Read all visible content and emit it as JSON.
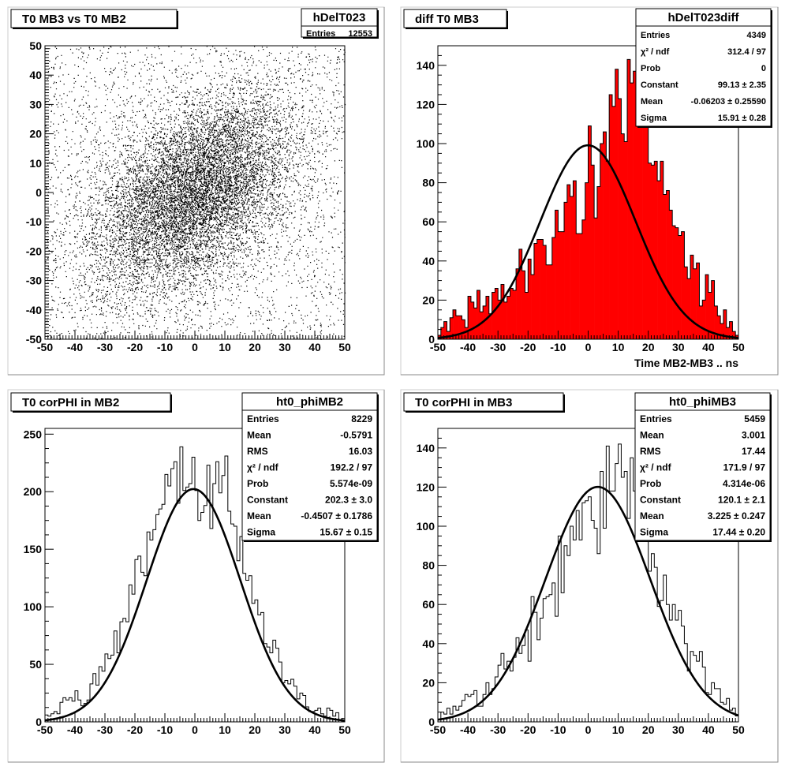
{
  "chart_data": [
    {
      "type": "scatter",
      "title": "T0 MB3 vs T0 MB2",
      "xlim": [
        -50,
        50
      ],
      "ylim": [
        -50,
        50
      ],
      "x_ticks": [
        -50,
        -40,
        -30,
        -20,
        -10,
        0,
        10,
        20,
        30,
        40,
        50
      ],
      "y_ticks": [
        -50,
        -40,
        -30,
        -20,
        -10,
        0,
        10,
        20,
        30,
        40,
        50
      ],
      "stats": {
        "name": "hDelT023",
        "rows": [
          {
            "label": "Entries",
            "value": "12553"
          }
        ]
      },
      "scatter": {
        "entries": 12553,
        "mean_x": 0,
        "mean_y": 0,
        "sigma_x": 17,
        "sigma_y": 17,
        "correlation": 0.45,
        "marker_color": "#000000"
      }
    },
    {
      "type": "bar",
      "title": "diff T0 MB3",
      "xlabel": "Time MB2-MB3  ..  ns",
      "xlim": [
        -50,
        50
      ],
      "ylim": [
        0,
        150
      ],
      "x_ticks": [
        -50,
        -40,
        -30,
        -20,
        -10,
        0,
        10,
        20,
        30,
        40,
        50
      ],
      "y_ticks": [
        0,
        20,
        40,
        60,
        80,
        100,
        120,
        140
      ],
      "fill_color": "#ff0000",
      "bins": 100,
      "stats": {
        "name": "hDelT023diff",
        "rows": [
          {
            "label": "Entries",
            "value": "4349"
          },
          {
            "label": "χ² / ndf",
            "value": "312.4 / 97"
          },
          {
            "label": "Prob",
            "value": "0"
          },
          {
            "label": "Constant",
            "value": "99.13 ± 2.35"
          },
          {
            "label": "Mean",
            "value": "-0.06203 ± 0.25590"
          },
          {
            "label": "Sigma",
            "value": "15.91 ± 0.28"
          }
        ]
      },
      "fit": {
        "type": "gaussian",
        "constant": 99.13,
        "mean": -0.06203,
        "sigma": 15.91
      },
      "values": [
        2,
        6,
        9,
        4,
        11,
        15,
        12,
        12,
        10,
        6,
        22,
        19,
        16,
        25,
        14,
        17,
        22,
        13,
        24,
        26,
        20,
        28,
        19,
        22,
        26,
        25,
        36,
        46,
        35,
        24,
        41,
        33,
        49,
        51,
        51,
        48,
        38,
        38,
        52,
        66,
        55,
        55,
        70,
        79,
        73,
        81,
        54,
        54,
        61,
        80,
        109,
        89,
        62,
        78,
        100,
        106,
        91,
        125,
        119,
        138,
        123,
        105,
        101,
        143,
        131,
        137,
        145,
        121,
        114,
        119,
        90,
        89,
        91,
        81,
        91,
        74,
        76,
        66,
        58,
        57,
        53,
        55,
        37,
        31,
        43,
        36,
        39,
        17,
        20,
        33,
        24,
        30,
        17,
        12,
        8,
        15,
        6,
        9,
        4,
        2
      ]
    },
    {
      "type": "bar",
      "title": "T0 corPHI in MB2",
      "xlim": [
        -50,
        50
      ],
      "ylim": [
        0,
        255
      ],
      "x_ticks": [
        -50,
        -40,
        -30,
        -20,
        -10,
        0,
        10,
        20,
        30,
        40,
        50
      ],
      "y_ticks": [
        0,
        50,
        100,
        150,
        200,
        250
      ],
      "bins": 100,
      "stats": {
        "name": "ht0_phiMB2",
        "rows": [
          {
            "label": "Entries",
            "value": "8229"
          },
          {
            "label": "Mean",
            "value": "-0.5791"
          },
          {
            "label": "RMS",
            "value": "16.03"
          },
          {
            "label": "χ² / ndf",
            "value": "192.2 / 97"
          },
          {
            "label": "Prob",
            "value": "5.574e-09"
          },
          {
            "label": "Constant",
            "value": "202.3 ± 3.0"
          },
          {
            "label": "Mean",
            "value": "-0.4507 ± 0.1786"
          },
          {
            "label": "Sigma",
            "value": "15.67 ± 0.15"
          }
        ]
      },
      "fit": {
        "type": "gaussian",
        "constant": 202.3,
        "mean": -0.4507,
        "sigma": 15.67
      },
      "values": [
        6,
        5,
        7,
        9,
        7,
        17,
        21,
        19,
        21,
        18,
        27,
        19,
        14,
        16,
        19,
        33,
        42,
        32,
        48,
        44,
        59,
        55,
        58,
        79,
        60,
        87,
        90,
        87,
        119,
        111,
        141,
        144,
        130,
        127,
        165,
        158,
        167,
        180,
        185,
        189,
        215,
        205,
        220,
        226,
        190,
        239,
        201,
        204,
        207,
        230,
        201,
        175,
        182,
        188,
        223,
        168,
        207,
        226,
        199,
        214,
        231,
        183,
        172,
        170,
        140,
        161,
        129,
        123,
        127,
        103,
        106,
        93,
        95,
        68,
        65,
        60,
        71,
        64,
        52,
        34,
        36,
        33,
        37,
        31,
        20,
        25,
        23,
        13,
        9,
        9,
        10,
        12,
        7,
        5,
        12,
        10,
        5,
        8,
        2,
        3
      ]
    },
    {
      "type": "bar",
      "title": "T0 corPHI in MB3",
      "xlim": [
        -50,
        50
      ],
      "ylim": [
        0,
        150
      ],
      "x_ticks": [
        -50,
        -40,
        -30,
        -20,
        -10,
        0,
        10,
        20,
        30,
        40,
        50
      ],
      "y_ticks": [
        0,
        20,
        40,
        60,
        80,
        100,
        120,
        140
      ],
      "bins": 100,
      "stats": {
        "name": "ht0_phiMB3",
        "rows": [
          {
            "label": "Entries",
            "value": "5459"
          },
          {
            "label": "Mean",
            "value": "3.001"
          },
          {
            "label": "RMS",
            "value": "17.44"
          },
          {
            "label": "χ² / ndf",
            "value": "171.9 / 97"
          },
          {
            "label": "Prob",
            "value": "4.314e-06"
          },
          {
            "label": "Constant",
            "value": "120.1 ± 2.1"
          },
          {
            "label": "Mean",
            "value": "3.225 ± 0.247"
          },
          {
            "label": "Sigma",
            "value": "17.44 ± 0.20"
          }
        ]
      },
      "fit": {
        "type": "gaussian",
        "constant": 120.1,
        "mean": 3.225,
        "sigma": 17.44
      },
      "values": [
        1,
        5,
        4,
        7,
        4,
        8,
        6,
        8,
        11,
        14,
        13,
        14,
        16,
        8,
        8,
        14,
        20,
        14,
        17,
        23,
        29,
        35,
        27,
        31,
        26,
        33,
        43,
        35,
        39,
        47,
        31,
        64,
        56,
        42,
        53,
        63,
        64,
        65,
        71,
        54,
        95,
        66,
        90,
        85,
        100,
        93,
        108,
        93,
        112,
        113,
        115,
        103,
        99,
        86,
        128,
        99,
        141,
        118,
        118,
        132,
        142,
        125,
        128,
        104,
        135,
        118,
        96,
        97,
        93,
        103,
        77,
        86,
        79,
        59,
        62,
        75,
        60,
        52,
        60,
        52,
        57,
        49,
        40,
        26,
        36,
        34,
        31,
        36,
        28,
        15,
        14,
        20,
        17,
        17,
        10,
        9,
        12,
        6,
        7,
        3
      ]
    }
  ]
}
